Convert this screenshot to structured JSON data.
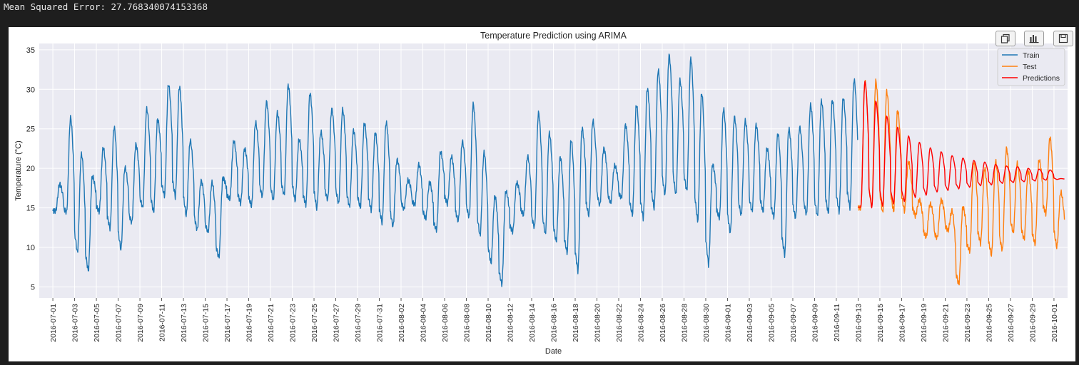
{
  "output": {
    "mse_text": "Mean Squared Error: 27.768340074153368"
  },
  "toolbar": {
    "icons": [
      "copy-icon",
      "bar-chart-icon",
      "save-icon"
    ]
  },
  "colors": {
    "train": "#1f77b4",
    "test": "#ff7f0e",
    "predictions": "#ff0000",
    "plot_bg": "#eaeaf2",
    "grid": "#ffffff"
  },
  "chart_data": {
    "type": "line",
    "title": "Temperature Prediction using ARIMA",
    "xlabel": "Date",
    "ylabel": "Temperature (°C)",
    "xlim": [
      "2016-06-29T18:00",
      "2016-10-02T06:00"
    ],
    "ylim": [
      3.6,
      35.8
    ],
    "yticks": [
      5,
      10,
      15,
      20,
      25,
      30,
      35
    ],
    "xticks": [
      "2016-07-01",
      "2016-07-03",
      "2016-07-05",
      "2016-07-07",
      "2016-07-09",
      "2016-07-11",
      "2016-07-13",
      "2016-07-15",
      "2016-07-17",
      "2016-07-19",
      "2016-07-21",
      "2016-07-23",
      "2016-07-25",
      "2016-07-27",
      "2016-07-29",
      "2016-07-31",
      "2016-08-02",
      "2016-08-04",
      "2016-08-06",
      "2016-08-08",
      "2016-08-10",
      "2016-08-12",
      "2016-08-14",
      "2016-08-16",
      "2016-08-18",
      "2016-08-20",
      "2016-08-22",
      "2016-08-24",
      "2016-08-26",
      "2016-08-28",
      "2016-08-30",
      "2016-09-01",
      "2016-09-03",
      "2016-09-05",
      "2016-09-07",
      "2016-09-09",
      "2016-09-11",
      "2016-09-13",
      "2016-09-15",
      "2016-09-17",
      "2016-09-19",
      "2016-09-21",
      "2016-09-23",
      "2016-09-25",
      "2016-09-27",
      "2016-09-29",
      "2016-10-01"
    ],
    "grid": true,
    "legend_position": "top-right",
    "series": [
      {
        "name": "Train",
        "dates": [
          "2016-07-01",
          "2016-07-02",
          "2016-07-03",
          "2016-07-04",
          "2016-07-05",
          "2016-07-06",
          "2016-07-07",
          "2016-07-08",
          "2016-07-09",
          "2016-07-10",
          "2016-07-11",
          "2016-07-12",
          "2016-07-13",
          "2016-07-14",
          "2016-07-15",
          "2016-07-16",
          "2016-07-17",
          "2016-07-18",
          "2016-07-19",
          "2016-07-20",
          "2016-07-21",
          "2016-07-22",
          "2016-07-23",
          "2016-07-24",
          "2016-07-25",
          "2016-07-26",
          "2016-07-27",
          "2016-07-28",
          "2016-07-29",
          "2016-07-30",
          "2016-07-31",
          "2016-08-01",
          "2016-08-02",
          "2016-08-03",
          "2016-08-04",
          "2016-08-05",
          "2016-08-06",
          "2016-08-07",
          "2016-08-08",
          "2016-08-09",
          "2016-08-10",
          "2016-08-11",
          "2016-08-12",
          "2016-08-13",
          "2016-08-14",
          "2016-08-15",
          "2016-08-16",
          "2016-08-17",
          "2016-08-18",
          "2016-08-19",
          "2016-08-20",
          "2016-08-21",
          "2016-08-22",
          "2016-08-23",
          "2016-08-24",
          "2016-08-25",
          "2016-08-26",
          "2016-08-27",
          "2016-08-28",
          "2016-08-29",
          "2016-08-30",
          "2016-08-31",
          "2016-09-01",
          "2016-09-02",
          "2016-09-03",
          "2016-09-04",
          "2016-09-05",
          "2016-09-06",
          "2016-09-07",
          "2016-09-08",
          "2016-09-09",
          "2016-09-10",
          "2016-09-11",
          "2016-09-12"
        ],
        "daily_min": [
          14.6,
          14.4,
          9.3,
          7.0,
          14.5,
          12.4,
          9.7,
          13.1,
          15.0,
          14.4,
          16.5,
          16.4,
          14.0,
          12.2,
          11.9,
          8.7,
          16.1,
          15.6,
          15.2,
          16.4,
          15.9,
          16.6,
          15.9,
          15.4,
          14.9,
          16.0,
          15.5,
          15.1,
          15.0,
          14.7,
          13.1,
          12.6,
          14.8,
          15.4,
          13.6,
          12.2,
          15.5,
          13.3,
          13.8,
          11.4,
          8.0,
          5.3,
          12.0,
          14.1,
          12.5,
          11.6,
          10.7,
          9.3,
          7.0,
          14.0,
          15.3,
          15.6,
          16.3,
          14.1,
          13.7,
          14.9,
          16.6,
          16.6,
          17.1,
          13.3,
          7.8,
          13.7,
          11.8,
          14.0,
          14.5,
          14.5,
          13.9,
          9.0,
          13.7,
          14.1,
          13.9,
          14.3,
          14.5,
          15.0
        ],
        "daily_max": [
          18.0,
          26.4,
          21.8,
          19.0,
          22.6,
          25.2,
          20.1,
          23.0,
          27.5,
          26.2,
          30.6,
          30.3,
          23.5,
          18.4,
          18.2,
          18.8,
          23.4,
          22.5,
          25.8,
          28.4,
          27.0,
          30.5,
          23.6,
          29.5,
          24.6,
          27.5,
          27.4,
          24.8,
          25.7,
          24.5,
          25.8,
          21.1,
          18.5,
          20.5,
          18.2,
          22.1,
          21.5,
          23.4,
          28.1,
          22.0,
          16.5,
          17.1,
          18.2,
          21.5,
          27.0,
          24.4,
          21.4,
          23.6,
          25.1,
          26.0,
          22.5,
          20.3,
          25.5,
          28.0,
          30.1,
          32.4,
          34.3,
          31.1,
          33.9,
          29.5,
          20.5,
          27.5,
          26.5,
          26.0,
          25.5,
          22.5,
          24.4,
          25.0,
          25.2,
          28.0,
          28.5,
          28.6,
          28.9,
          31.2
        ]
      },
      {
        "name": "Test",
        "dates": [
          "2016-09-13",
          "2016-09-14",
          "2016-09-15",
          "2016-09-16",
          "2016-09-17",
          "2016-09-18",
          "2016-09-19",
          "2016-09-20",
          "2016-09-21",
          "2016-09-22",
          "2016-09-23",
          "2016-09-24",
          "2016-09-25",
          "2016-09-26",
          "2016-09-27",
          "2016-09-28",
          "2016-09-29",
          "2016-09-30",
          "2016-10-01"
        ],
        "daily_min": [
          15.0,
          15.1,
          14.3,
          14.5,
          14.6,
          14.0,
          11.3,
          11.2,
          12.1,
          5.3,
          9.5,
          10.5,
          9.0,
          9.6,
          11.8,
          11.0,
          10.4,
          14.3,
          10.0
        ],
        "daily_max": [
          31.0,
          31.0,
          29.7,
          27.3,
          20.8,
          16.0,
          15.5,
          16.0,
          14.6,
          15.1,
          20.8,
          20.0,
          20.9,
          22.5,
          20.6,
          19.7,
          21.0,
          23.9,
          17.0
        ]
      },
      {
        "name": "Predictions",
        "dates": [
          "2016-09-13",
          "2016-09-14",
          "2016-09-15",
          "2016-09-16",
          "2016-09-17",
          "2016-09-18",
          "2016-09-19",
          "2016-09-20",
          "2016-09-21",
          "2016-09-22",
          "2016-09-23",
          "2016-09-24",
          "2016-09-25",
          "2016-09-26",
          "2016-09-27",
          "2016-09-28",
          "2016-09-29",
          "2016-09-30",
          "2016-10-01"
        ],
        "daily_min": [
          15.1,
          15.0,
          15.2,
          15.5,
          15.8,
          16.3,
          16.6,
          17.0,
          17.2,
          17.4,
          17.6,
          17.8,
          17.9,
          18.1,
          18.2,
          18.3,
          18.4,
          18.5,
          18.6
        ],
        "daily_max": [
          31.0,
          28.5,
          26.6,
          25.2,
          24.1,
          23.3,
          22.6,
          22.1,
          21.6,
          21.3,
          21.0,
          20.8,
          20.5,
          20.3,
          20.2,
          20.0,
          19.9,
          19.8,
          18.7
        ]
      }
    ]
  }
}
